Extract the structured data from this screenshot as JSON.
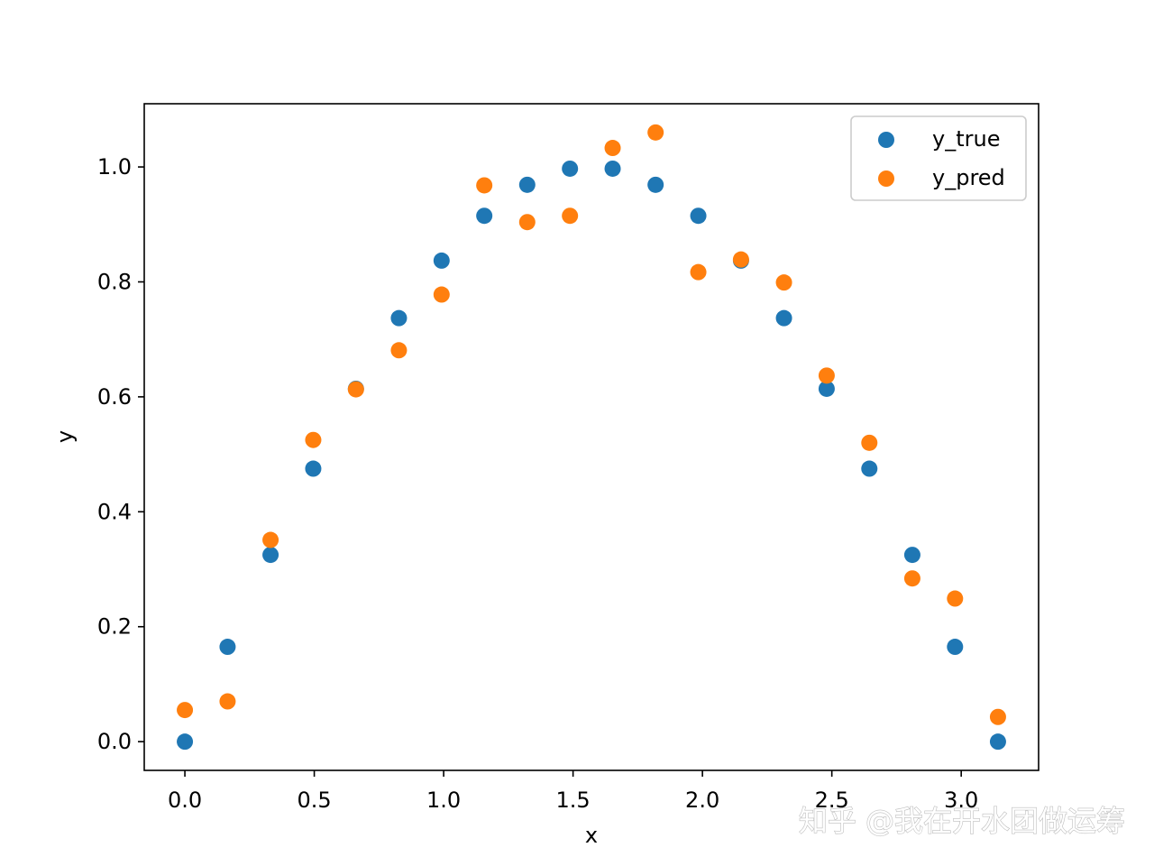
{
  "chart_data": {
    "type": "scatter",
    "title": "",
    "xlabel": "x",
    "ylabel": "y",
    "xlim": [
      -0.157,
      3.299
    ],
    "ylim": [
      -0.05,
      1.11
    ],
    "xticks": [
      "0.0",
      "0.5",
      "1.0",
      "1.5",
      "2.0",
      "2.5",
      "3.0"
    ],
    "yticks": [
      "0.0",
      "0.2",
      "0.4",
      "0.6",
      "0.8",
      "1.0"
    ],
    "grid": false,
    "legend_position": "top-right",
    "x": [
      0.0,
      0.165,
      0.331,
      0.496,
      0.661,
      0.827,
      0.992,
      1.157,
      1.323,
      1.488,
      1.653,
      1.819,
      1.984,
      2.149,
      2.315,
      2.48,
      2.645,
      2.811,
      2.976,
      3.142
    ],
    "series": [
      {
        "name": "y_true",
        "color": "#1f77b4",
        "values": [
          0.0,
          0.165,
          0.325,
          0.475,
          0.614,
          0.737,
          0.837,
          0.915,
          0.969,
          0.997,
          0.997,
          0.969,
          0.915,
          0.837,
          0.737,
          0.614,
          0.475,
          0.325,
          0.165,
          0.0
        ]
      },
      {
        "name": "y_pred",
        "color": "#ff7f0e",
        "values": [
          0.055,
          0.07,
          0.351,
          0.525,
          0.613,
          0.681,
          0.778,
          0.968,
          0.904,
          0.915,
          1.033,
          1.06,
          0.817,
          0.839,
          0.799,
          0.637,
          0.52,
          0.284,
          0.249,
          0.043
        ]
      }
    ]
  },
  "watermark": {
    "text": "知乎 @我在开水团做运筹"
  }
}
